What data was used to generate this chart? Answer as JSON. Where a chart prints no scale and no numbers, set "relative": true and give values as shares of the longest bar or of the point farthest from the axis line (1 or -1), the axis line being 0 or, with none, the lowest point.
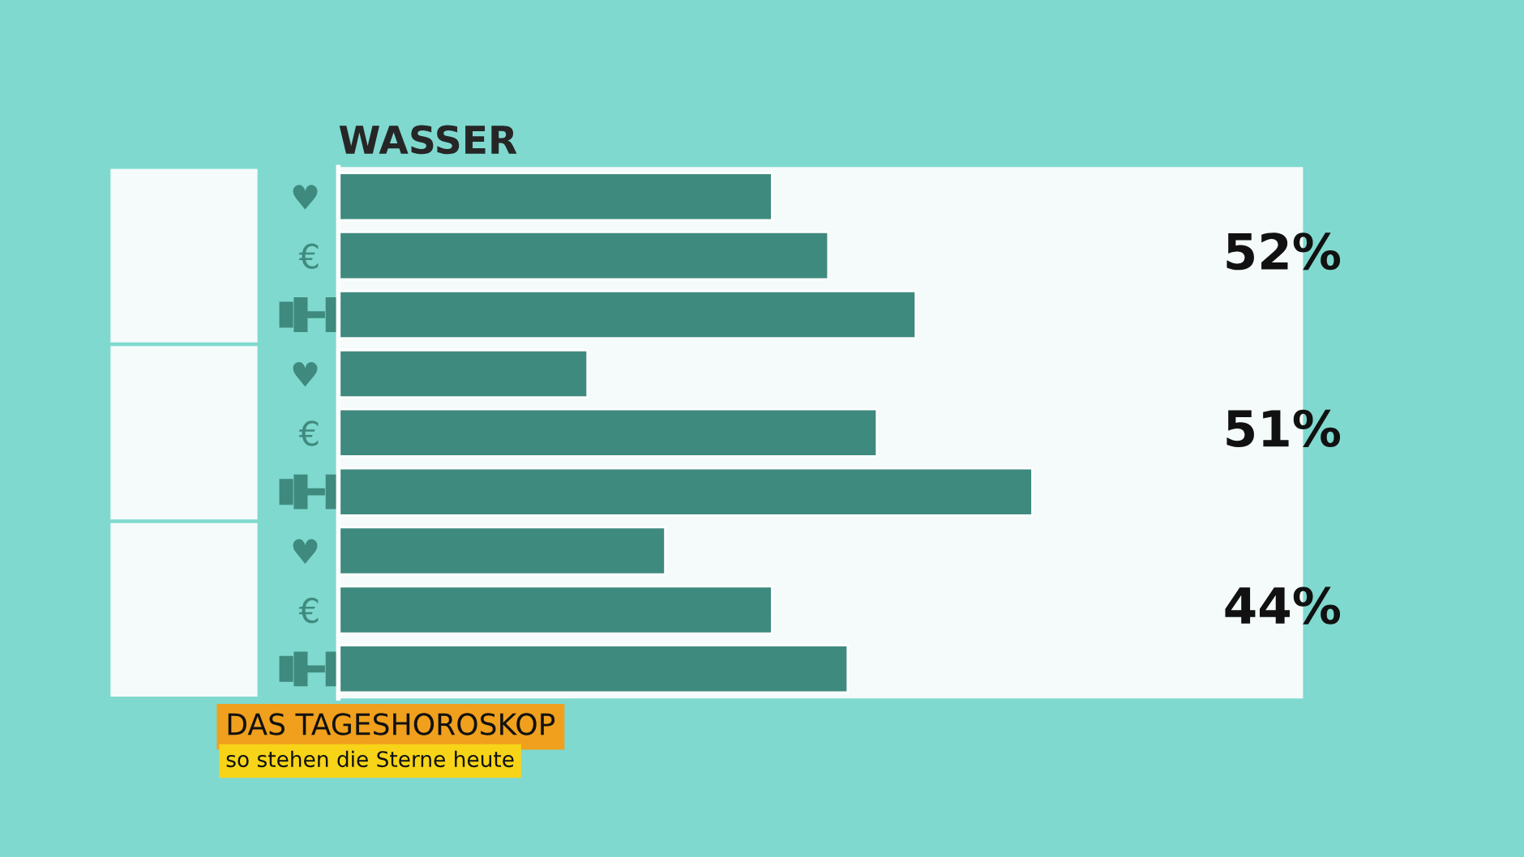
{
  "chart_data": {
    "type": "bar",
    "orientation": "horizontal",
    "relative": true,
    "title": "WASSER",
    "categories": [
      "♥",
      "€",
      null,
      "♥",
      "€",
      null,
      "♥",
      "€",
      null
    ],
    "values": [
      0.625,
      0.706,
      0.832,
      0.359,
      0.776,
      1,
      0.471,
      0.625,
      0.734
    ],
    "color": "#3f8a7e",
    "annotations": [
      "52%",
      "51%",
      "44%",
      "DAS TAGESHOROSKOP",
      "so stehen die Sterne heute"
    ],
    "grid": false
  }
}
